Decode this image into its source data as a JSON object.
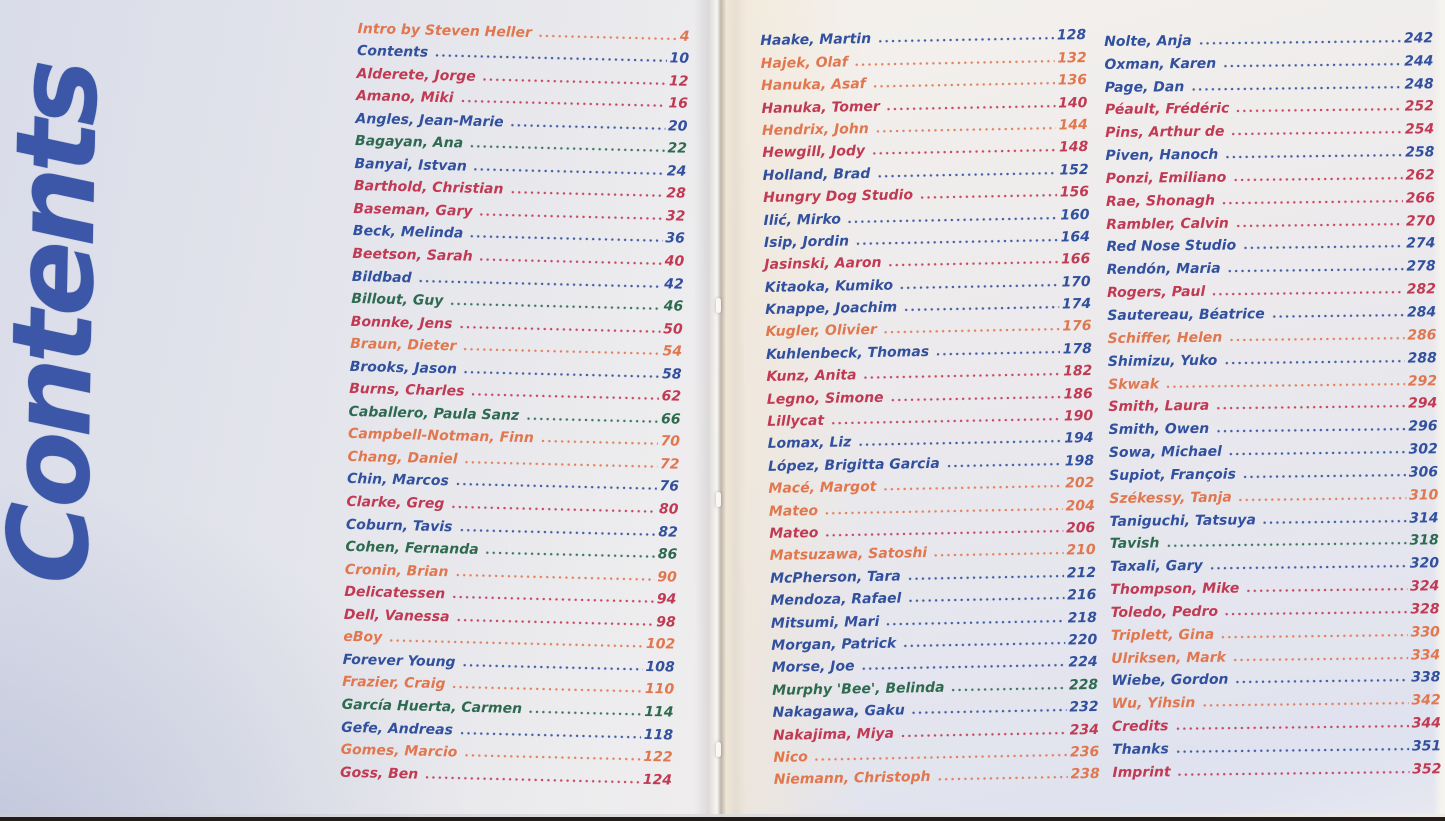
{
  "title": "Contents",
  "palette": {
    "blue": "#31509e",
    "red": "#c13a54",
    "orange": "#e1774f",
    "green": "#2e6a50",
    "title_blue": "#3c57a8"
  },
  "columns": [
    {
      "entries": [
        {
          "label": "Intro by Steven Heller",
          "page": "4",
          "color": "orange"
        },
        {
          "label": "Contents",
          "page": "10",
          "color": "blue"
        },
        {
          "label": "Alderete, Jorge",
          "page": "12",
          "color": "red"
        },
        {
          "label": "Amano, Miki",
          "page": "16",
          "color": "red"
        },
        {
          "label": "Angles, Jean-Marie",
          "page": "20",
          "color": "blue"
        },
        {
          "label": "Bagayan, Ana",
          "page": "22",
          "color": "green"
        },
        {
          "label": "Banyai, Istvan",
          "page": "24",
          "color": "blue"
        },
        {
          "label": "Barthold, Christian",
          "page": "28",
          "color": "red"
        },
        {
          "label": "Baseman, Gary",
          "page": "32",
          "color": "red"
        },
        {
          "label": "Beck, Melinda",
          "page": "36",
          "color": "blue"
        },
        {
          "label": "Beetson, Sarah",
          "page": "40",
          "color": "red"
        },
        {
          "label": "Bildbad",
          "page": "42",
          "color": "blue"
        },
        {
          "label": "Billout, Guy",
          "page": "46",
          "color": "green"
        },
        {
          "label": "Bonnke, Jens",
          "page": "50",
          "color": "red"
        },
        {
          "label": "Braun, Dieter",
          "page": "54",
          "color": "orange"
        },
        {
          "label": "Brooks, Jason",
          "page": "58",
          "color": "blue"
        },
        {
          "label": "Burns, Charles",
          "page": "62",
          "color": "red"
        },
        {
          "label": "Caballero, Paula Sanz",
          "page": "66",
          "color": "green"
        },
        {
          "label": "Campbell-Notman, Finn",
          "page": "70",
          "color": "orange"
        },
        {
          "label": "Chang, Daniel",
          "page": "72",
          "color": "orange"
        },
        {
          "label": "Chin, Marcos",
          "page": "76",
          "color": "blue"
        },
        {
          "label": "Clarke, Greg",
          "page": "80",
          "color": "red"
        },
        {
          "label": "Coburn, Tavis",
          "page": "82",
          "color": "blue"
        },
        {
          "label": "Cohen, Fernanda",
          "page": "86",
          "color": "green"
        },
        {
          "label": "Cronin, Brian",
          "page": "90",
          "color": "orange"
        },
        {
          "label": "Delicatessen",
          "page": "94",
          "color": "red"
        },
        {
          "label": "Dell, Vanessa",
          "page": "98",
          "color": "red"
        },
        {
          "label": "eBoy",
          "page": "102",
          "color": "orange"
        },
        {
          "label": "Forever Young",
          "page": "108",
          "color": "blue"
        },
        {
          "label": "Frazier, Craig",
          "page": "110",
          "color": "orange"
        },
        {
          "label": "García Huerta, Carmen",
          "page": "114",
          "color": "green"
        },
        {
          "label": "Gefe, Andreas",
          "page": "118",
          "color": "blue"
        },
        {
          "label": "Gomes, Marcio",
          "page": "122",
          "color": "orange"
        },
        {
          "label": "Goss, Ben",
          "page": "124",
          "color": "red"
        }
      ]
    },
    {
      "entries": [
        {
          "label": "Haake, Martin",
          "page": "128",
          "color": "blue"
        },
        {
          "label": "Hajek, Olaf",
          "page": "132",
          "color": "orange"
        },
        {
          "label": "Hanuka, Asaf",
          "page": "136",
          "color": "orange"
        },
        {
          "label": "Hanuka, Tomer",
          "page": "140",
          "color": "red"
        },
        {
          "label": "Hendrix, John",
          "page": "144",
          "color": "orange"
        },
        {
          "label": "Hewgill, Jody",
          "page": "148",
          "color": "red"
        },
        {
          "label": "Holland, Brad",
          "page": "152",
          "color": "blue"
        },
        {
          "label": "Hungry Dog Studio",
          "page": "156",
          "color": "red"
        },
        {
          "label": "Ilić, Mirko",
          "page": "160",
          "color": "blue"
        },
        {
          "label": "Isip, Jordin",
          "page": "164",
          "color": "blue"
        },
        {
          "label": "Jasinski, Aaron",
          "page": "166",
          "color": "red"
        },
        {
          "label": "Kitaoka, Kumiko",
          "page": "170",
          "color": "blue"
        },
        {
          "label": "Knappe, Joachim",
          "page": "174",
          "color": "blue"
        },
        {
          "label": "Kugler, Olivier",
          "page": "176",
          "color": "orange"
        },
        {
          "label": "Kuhlenbeck, Thomas",
          "page": "178",
          "color": "blue"
        },
        {
          "label": "Kunz, Anita",
          "page": "182",
          "color": "red"
        },
        {
          "label": "Legno, Simone",
          "page": "186",
          "color": "red"
        },
        {
          "label": "Lillycat",
          "page": "190",
          "color": "red"
        },
        {
          "label": "Lomax, Liz",
          "page": "194",
          "color": "blue"
        },
        {
          "label": "López, Brigitta Garcia",
          "page": "198",
          "color": "blue"
        },
        {
          "label": "Macé, Margot",
          "page": "202",
          "color": "orange"
        },
        {
          "label": "Mateo",
          "page": "204",
          "color": "orange"
        },
        {
          "label": "Mateo",
          "page": "206",
          "color": "red"
        },
        {
          "label": "Matsuzawa, Satoshi",
          "page": "210",
          "color": "orange"
        },
        {
          "label": "McPherson, Tara",
          "page": "212",
          "color": "blue"
        },
        {
          "label": "Mendoza, Rafael",
          "page": "216",
          "color": "blue"
        },
        {
          "label": "Mitsumi, Mari",
          "page": "218",
          "color": "blue"
        },
        {
          "label": "Morgan, Patrick",
          "page": "220",
          "color": "blue"
        },
        {
          "label": "Morse, Joe",
          "page": "224",
          "color": "blue"
        },
        {
          "label": "Murphy 'Bee', Belinda",
          "page": "228",
          "color": "green"
        },
        {
          "label": "Nakagawa, Gaku",
          "page": "232",
          "color": "blue"
        },
        {
          "label": "Nakajima, Miya",
          "page": "234",
          "color": "red"
        },
        {
          "label": "Nico",
          "page": "236",
          "color": "orange"
        },
        {
          "label": "Niemann, Christoph",
          "page": "238",
          "color": "orange"
        }
      ]
    },
    {
      "entries": [
        {
          "label": "Nolte, Anja",
          "page": "242",
          "color": "blue"
        },
        {
          "label": "Oxman, Karen",
          "page": "244",
          "color": "blue"
        },
        {
          "label": "Page, Dan",
          "page": "248",
          "color": "blue"
        },
        {
          "label": "Péault, Frédéric",
          "page": "252",
          "color": "red"
        },
        {
          "label": "Pins, Arthur de",
          "page": "254",
          "color": "red"
        },
        {
          "label": "Piven, Hanoch",
          "page": "258",
          "color": "blue"
        },
        {
          "label": "Ponzi, Emiliano",
          "page": "262",
          "color": "red"
        },
        {
          "label": "Rae, Shonagh",
          "page": "266",
          "color": "red"
        },
        {
          "label": "Rambler, Calvin",
          "page": "270",
          "color": "red"
        },
        {
          "label": "Red Nose Studio",
          "page": "274",
          "color": "blue"
        },
        {
          "label": "Rendón, Maria",
          "page": "278",
          "color": "blue"
        },
        {
          "label": "Rogers, Paul",
          "page": "282",
          "color": "red"
        },
        {
          "label": "Sautereau, Béatrice",
          "page": "284",
          "color": "blue"
        },
        {
          "label": "Schiffer, Helen",
          "page": "286",
          "color": "orange"
        },
        {
          "label": "Shimizu, Yuko",
          "page": "288",
          "color": "blue"
        },
        {
          "label": "Skwak",
          "page": "292",
          "color": "orange"
        },
        {
          "label": "Smith, Laura",
          "page": "294",
          "color": "red"
        },
        {
          "label": "Smith, Owen",
          "page": "296",
          "color": "blue"
        },
        {
          "label": "Sowa, Michael",
          "page": "302",
          "color": "blue"
        },
        {
          "label": "Supiot, François",
          "page": "306",
          "color": "blue"
        },
        {
          "label": "Székessy, Tanja",
          "page": "310",
          "color": "orange"
        },
        {
          "label": "Taniguchi, Tatsuya",
          "page": "314",
          "color": "blue"
        },
        {
          "label": "Tavish",
          "page": "318",
          "color": "green"
        },
        {
          "label": "Taxali, Gary",
          "page": "320",
          "color": "blue"
        },
        {
          "label": "Thompson, Mike",
          "page": "324",
          "color": "red"
        },
        {
          "label": "Toledo, Pedro",
          "page": "328",
          "color": "red"
        },
        {
          "label": "Triplett, Gina",
          "page": "330",
          "color": "orange"
        },
        {
          "label": "Ulriksen, Mark",
          "page": "334",
          "color": "orange"
        },
        {
          "label": "Wiebe, Gordon",
          "page": "338",
          "color": "blue"
        },
        {
          "label": "Wu, Yihsin",
          "page": "342",
          "color": "orange"
        },
        {
          "label": "Credits",
          "page": "344",
          "color": "red"
        },
        {
          "label": "Thanks",
          "page": "351",
          "color": "blue"
        },
        {
          "label": "Imprint",
          "page": "352",
          "color": "red"
        }
      ]
    }
  ]
}
